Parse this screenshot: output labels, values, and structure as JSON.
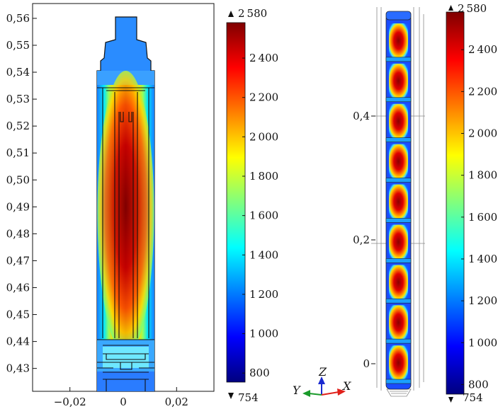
{
  "chart_data": [
    {
      "type": "heatmap",
      "y_ticks": [
        "0,56",
        "0,55",
        "0,54",
        "0,53",
        "0,52",
        "0,51",
        "0,50",
        "0,49",
        "0,48",
        "0,47",
        "0,46",
        "0,45",
        "0,44",
        "0,43"
      ],
      "y_values": [
        0.56,
        0.55,
        0.54,
        0.53,
        0.52,
        0.51,
        0.5,
        0.49,
        0.48,
        0.47,
        0.46,
        0.45,
        0.44,
        0.43
      ],
      "x_ticks": [
        "−0,02",
        "0",
        "0,02"
      ],
      "x_values": [
        -0.02,
        0,
        0.02
      ],
      "xlim": [
        -0.034,
        0.034
      ],
      "ylim": [
        0.4215,
        0.5655
      ],
      "colorbar": {
        "max_label": "2 580",
        "min_label": "754",
        "ticks": [
          "2 400",
          "2 200",
          "2 000",
          "1 800",
          "1 600",
          "1 400",
          "1 200",
          "1 000",
          "800"
        ],
        "tick_values": [
          2400,
          2200,
          2000,
          1800,
          1600,
          1400,
          1200,
          1000,
          800
        ],
        "range": [
          754,
          2580
        ]
      }
    },
    {
      "type": "heatmap",
      "z_ticks": [
        "0,4",
        "0,2",
        "0"
      ],
      "z_values": [
        0.4,
        0.2,
        0
      ],
      "segments": 9,
      "axes_triad": {
        "y": "Y",
        "z": "Z",
        "x": "X"
      },
      "colorbar": {
        "max_label": "2 580",
        "min_label": "754",
        "ticks": [
          "2 400",
          "2 200",
          "2 000",
          "1 800",
          "1 600",
          "1 400",
          "1 200",
          "1 000",
          "800"
        ],
        "tick_values": [
          2400,
          2200,
          2000,
          1800,
          1600,
          1400,
          1200,
          1000,
          800
        ],
        "range": [
          754,
          2580
        ]
      }
    }
  ],
  "colors": {
    "colormap": [
      "#00007f",
      "#0000ff",
      "#007fff",
      "#00ffff",
      "#7fff7f",
      "#ffff00",
      "#ff7f00",
      "#ff0000",
      "#7f0000"
    ],
    "axis_x": "#e0201a",
    "axis_y": "#1a9a2a",
    "axis_z": "#1a2ad0"
  }
}
